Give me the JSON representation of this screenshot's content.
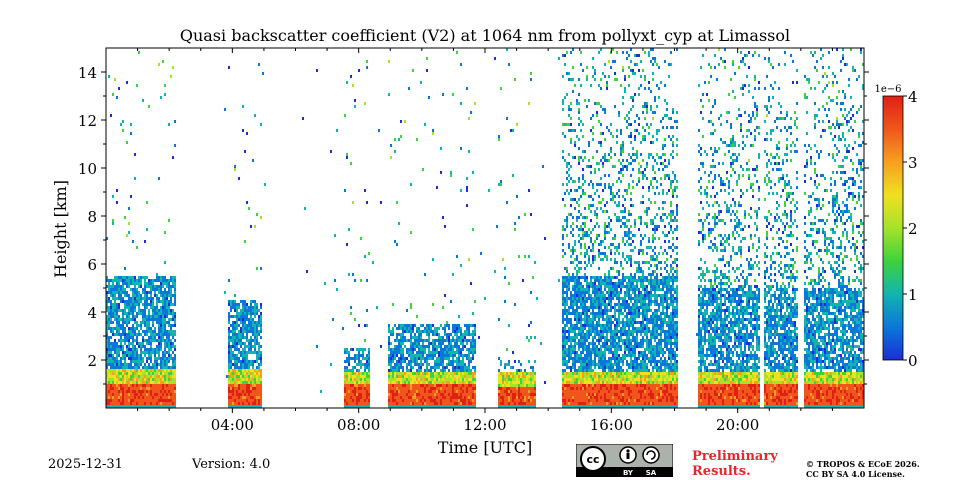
{
  "chart_data": {
    "type": "heatmap",
    "title": "Quasi backscatter coefficient (V2) at 1064 nm from pollyxt_cyp at Limassol",
    "xlabel": "Time [UTC]",
    "ylabel": "Height [km]",
    "x_range_hours": [
      0,
      24
    ],
    "ylim_km": [
      0,
      15
    ],
    "x_ticks": [
      {
        "value": 4,
        "label": "04:00"
      },
      {
        "value": 8,
        "label": "08:00"
      },
      {
        "value": 12,
        "label": "12:00"
      },
      {
        "value": 16,
        "label": "16:00"
      },
      {
        "value": 20,
        "label": "20:00"
      }
    ],
    "y_ticks": [
      {
        "value": 2,
        "label": "2"
      },
      {
        "value": 4,
        "label": "4"
      },
      {
        "value": 6,
        "label": "6"
      },
      {
        "value": 8,
        "label": "8"
      },
      {
        "value": 10,
        "label": "10"
      },
      {
        "value": 12,
        "label": "12"
      },
      {
        "value": 14,
        "label": "14"
      }
    ],
    "colorbar": {
      "range": [
        0,
        4
      ],
      "multiplier_label": "1e−6",
      "ticks": [
        {
          "value": 0,
          "label": "0"
        },
        {
          "value": 1,
          "label": "1"
        },
        {
          "value": 2,
          "label": "2"
        },
        {
          "value": 3,
          "label": "3"
        },
        {
          "value": 4,
          "label": "4"
        }
      ],
      "colormap": [
        "#1a2fd6",
        "#0a78d8",
        "#12b4b0",
        "#3ed23c",
        "#a6e22a",
        "#f0e020",
        "#f6a020",
        "#f0561c",
        "#e02014"
      ]
    },
    "blank_periods_hours": [
      [
        2.3,
        3.7
      ],
      [
        5.1,
        6.2
      ],
      [
        18.2,
        18.6
      ],
      [
        20.65,
        20.8
      ],
      [
        21.85,
        22.05
      ]
    ],
    "profile_segments": [
      {
        "t_start": 0.0,
        "t_end": 2.2,
        "ground_km": 0.3,
        "top_km": 5.5,
        "intensity": 0.95
      },
      {
        "t_start": 3.8,
        "t_end": 4.9,
        "ground_km": 0.3,
        "top_km": 4.5,
        "intensity": 0.9
      },
      {
        "t_start": 7.5,
        "t_end": 8.3,
        "ground_km": 0.2,
        "top_km": 2.5,
        "intensity": 0.8
      },
      {
        "t_start": 8.9,
        "t_end": 11.7,
        "ground_km": 0.2,
        "top_km": 3.5,
        "intensity": 0.85
      },
      {
        "t_start": 12.4,
        "t_end": 13.6,
        "ground_km": 0.1,
        "top_km": 2.0,
        "intensity": 0.45
      },
      {
        "t_start": 14.4,
        "t_end": 18.1,
        "ground_km": 0.2,
        "top_km": 5.5,
        "intensity": 0.95
      },
      {
        "t_start": 18.7,
        "t_end": 24.0,
        "ground_km": 0.2,
        "top_km": 5.0,
        "intensity": 0.9
      }
    ]
  },
  "footer": {
    "date": "2025-12-31",
    "version": "Version: 4.0",
    "preliminary_line1": "Preliminary",
    "preliminary_line2": "Results.",
    "copyright_line1": "© TROPOS & ECoE 2026.",
    "copyright_line2": "CC BY SA 4.0 License.",
    "license_badge": {
      "by": "BY",
      "sa": "SA"
    }
  }
}
